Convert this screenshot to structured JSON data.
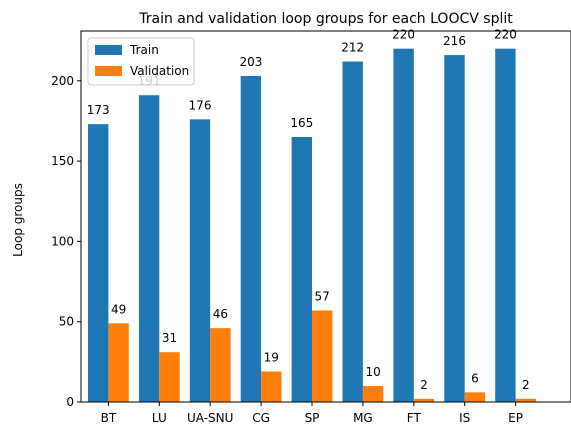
{
  "chart_data": {
    "type": "bar",
    "title": "Train and validation loop groups for each LOOCV split",
    "xlabel": "",
    "ylabel": "Loop groups",
    "categories": [
      "BT",
      "LU",
      "UA-SNU",
      "CG",
      "SP",
      "MG",
      "FT",
      "IS",
      "EP"
    ],
    "series": [
      {
        "name": "Train",
        "color": "#1f77b4",
        "values": [
          173,
          191,
          176,
          203,
          165,
          212,
          220,
          216,
          220
        ]
      },
      {
        "name": "Validation",
        "color": "#ff7f0e",
        "values": [
          49,
          31,
          46,
          19,
          57,
          10,
          2,
          6,
          2
        ]
      }
    ],
    "ylim": [
      0,
      231
    ],
    "yticks": [
      0,
      50,
      100,
      150,
      200
    ],
    "grid": false,
    "legend_position": "top-left"
  }
}
